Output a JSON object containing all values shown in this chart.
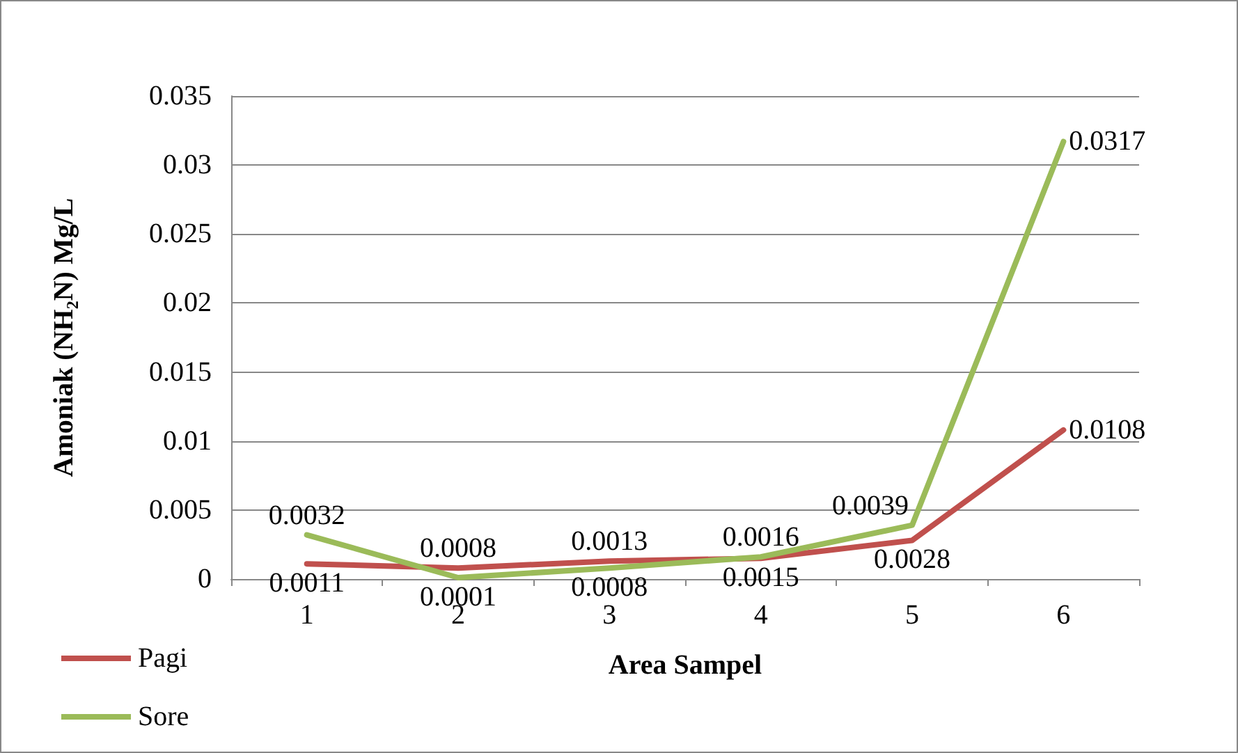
{
  "chart_data": {
    "type": "line",
    "xlabel": "Area Sampel",
    "ylabel": "Amoniak (NH₂N) Mg/L",
    "categories": [
      "1",
      "2",
      "3",
      "4",
      "5",
      "6"
    ],
    "series": [
      {
        "name": "Pagi",
        "color": "#c0504d",
        "values": [
          0.0011,
          0.0008,
          0.0013,
          0.0015,
          0.0028,
          0.0108
        ]
      },
      {
        "name": "Sore",
        "color": "#9bbb59",
        "values": [
          0.0032,
          0.0001,
          0.0008,
          0.0016,
          0.0039,
          0.0317
        ]
      }
    ],
    "ylim": [
      0,
      0.035
    ],
    "yticks": [
      0,
      0.005,
      0.01,
      0.015,
      0.02,
      0.025,
      0.03,
      0.035
    ],
    "grid": "y",
    "legend": "bottom left",
    "marker": "none",
    "line_style": "solid",
    "data_labels": true
  }
}
